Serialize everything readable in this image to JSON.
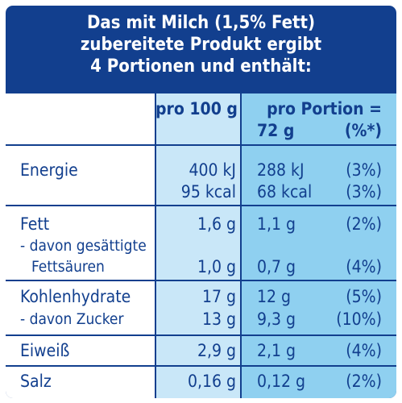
{
  "header": {
    "line1": "Das mit Milch (1,5% Fett)",
    "line2": "zubereitete Produkt ergibt",
    "line3": "4 Portionen und enthält:"
  },
  "columns": {
    "per100g": "pro 100 g",
    "perPortion_line1": "pro Portion =",
    "perPortion_grams": "72 g",
    "perPortion_percent": "(%*)"
  },
  "rows": {
    "energie": {
      "label": "Energie",
      "kj_100g": "400 kJ",
      "kj_portion": "288 kJ",
      "kj_pct": "(3%)",
      "kcal_100g": "95 kcal",
      "kcal_portion": "68 kcal",
      "kcal_pct": "(3%)"
    },
    "fett": {
      "label": "Fett",
      "per100g": "1,6 g",
      "portion": "1,1 g",
      "pct": "(2%)",
      "sub_label1": "- davon gesättigte",
      "sub_label2": "Fettsäuren",
      "sub_per100g": "1,0 g",
      "sub_portion": "0,7 g",
      "sub_pct": "(4%)"
    },
    "kh": {
      "label": "Kohlenhydrate",
      "per100g": "17 g",
      "portion": "12 g",
      "pct": "(5%)",
      "sub_label": "- davon Zucker",
      "sub_per100g": "13 g",
      "sub_portion": "9,3 g",
      "sub_pct": "(10%)"
    },
    "eiweiss": {
      "label": "Eiweiß",
      "per100g": "2,9 g",
      "portion": "2,1 g",
      "pct": "(4%)"
    },
    "salz": {
      "label": "Salz",
      "per100g": "0,16 g",
      "portion": "0,12 g",
      "pct": "(2%)"
    }
  },
  "colors": {
    "navy": "#123f8e",
    "light_blue": "#c9e7f8",
    "mid_blue": "#8fd0f0"
  }
}
